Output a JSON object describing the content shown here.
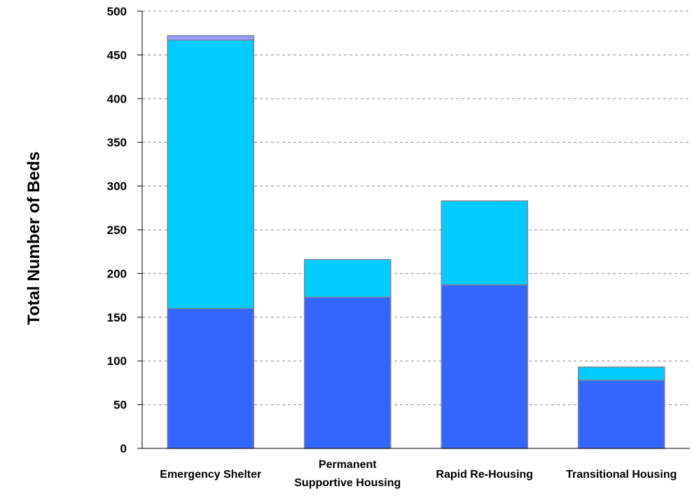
{
  "chart_data": {
    "type": "bar",
    "stacked": true,
    "title": "",
    "xlabel": "",
    "ylabel": "Total Number of Beds",
    "ylim": [
      0,
      500
    ],
    "yticks": [
      "0",
      "50",
      "100",
      "150",
      "200",
      "250",
      "300",
      "350",
      "400",
      "450",
      "500"
    ],
    "grid": true,
    "legend": "none",
    "categories": [
      [
        "Emergency Shelter"
      ],
      [
        "Permanent",
        "Supportive Housing"
      ],
      [
        "Rapid Re-Housing"
      ],
      [
        "Transitional Housing"
      ]
    ],
    "series": [
      {
        "color": "#3366ff",
        "values": [
          160,
          173,
          187,
          78
        ]
      },
      {
        "color": "#00ccff",
        "values": [
          307,
          43,
          96,
          15
        ]
      },
      {
        "color": "#9999ff",
        "values": [
          5,
          0,
          0,
          0
        ]
      }
    ]
  }
}
